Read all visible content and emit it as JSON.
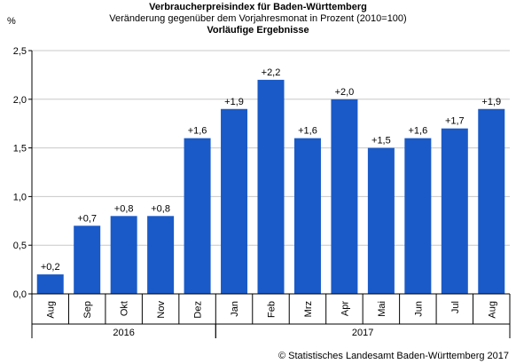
{
  "chart_data": {
    "type": "bar",
    "title": "Verbraucherpreisindex für Baden-Württemberg",
    "subtitle": "Veränderung gegenüber dem Vorjahresmonat in Prozent (2010=100)",
    "subtitle2": "Vorläufige Ergebnisse",
    "ylabel": "%",
    "ylim": [
      0,
      2.5
    ],
    "yticks": [
      "0,0",
      "0,5",
      "1,0",
      "1,5",
      "2,0",
      "2,5"
    ],
    "ytick_values": [
      0,
      0.5,
      1.0,
      1.5,
      2.0,
      2.5
    ],
    "categories": [
      "Aug",
      "Sep",
      "Okt",
      "Nov",
      "Dez",
      "Jan",
      "Feb",
      "Mrz",
      "Apr",
      "Mai",
      "Jun",
      "Jul",
      "Aug"
    ],
    "values": [
      0.2,
      0.7,
      0.8,
      0.8,
      1.6,
      1.9,
      2.2,
      1.6,
      2.0,
      1.5,
      1.6,
      1.7,
      1.9
    ],
    "value_labels": [
      "+0,2",
      "+0,7",
      "+0,8",
      "+0,8",
      "+1,6",
      "+1,9",
      "+2,2",
      "+1,6",
      "+2,0",
      "+1,5",
      "+1,6",
      "+1,7",
      "+1,9"
    ],
    "year_groups": [
      {
        "label": "2016",
        "start": 0,
        "end": 4
      },
      {
        "label": "2017",
        "start": 5,
        "end": 12
      }
    ],
    "grid": true,
    "bar_color": "#1a5ac8"
  },
  "footer": {
    "copyright": "© Statistisches Landesamt Baden-Württemberg 2017"
  }
}
